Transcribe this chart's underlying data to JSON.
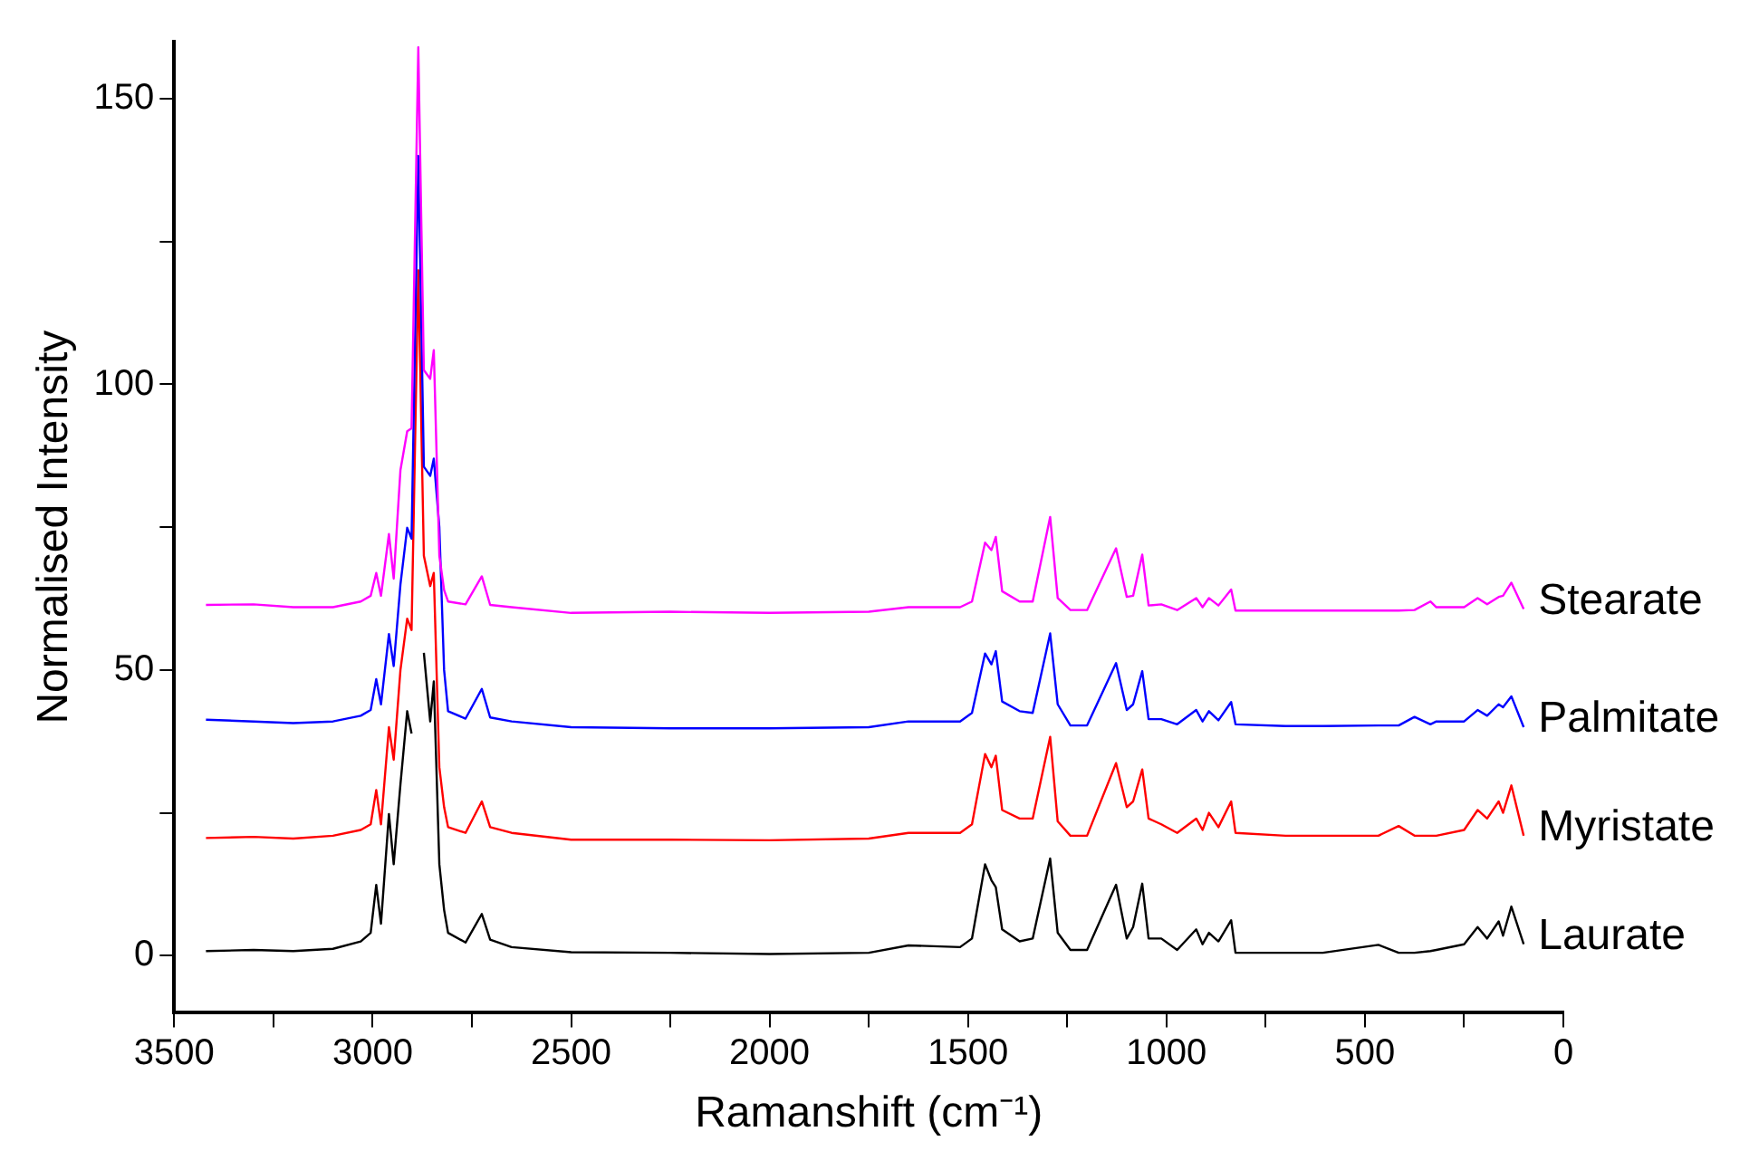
{
  "chart_data": {
    "type": "line",
    "xlabel": "Ramanshift (cm⁻¹)",
    "ylabel": "Normalised Intensity",
    "x": [
      3420,
      3300,
      3200,
      3100,
      3030,
      3005,
      2991,
      2979,
      2959,
      2947,
      2930,
      2913,
      2902,
      2885,
      2871,
      2855,
      2846,
      2832,
      2820,
      2810,
      2766,
      2725,
      2704,
      2650,
      2500,
      2250,
      2000,
      1750,
      1650,
      1520,
      1490,
      1457,
      1441,
      1430,
      1414,
      1370,
      1337,
      1293,
      1274,
      1242,
      1200,
      1127,
      1100,
      1084,
      1061,
      1045,
      1013,
      973,
      925,
      909,
      893,
      869,
      837,
      826,
      700,
      606,
      466,
      415,
      375,
      335,
      320,
      250,
      216,
      192,
      163,
      152,
      131,
      100
    ],
    "series": [
      {
        "name": "Stearate",
        "color": "#ff00ff",
        "values": [
          61.4,
          61.5,
          61,
          61,
          62,
          63,
          67,
          63,
          73.8,
          66,
          85,
          91.8,
          92.3,
          159,
          102.5,
          101,
          106,
          70,
          64,
          62,
          61.5,
          66.4,
          61.4,
          61,
          60,
          60.2,
          60,
          60.2,
          61,
          61,
          62,
          72.3,
          71,
          73.3,
          63.8,
          62,
          62,
          76.8,
          62.6,
          60.5,
          60.5,
          71.3,
          62.8,
          63,
          70.2,
          61.3,
          61.5,
          60.5,
          62.6,
          61,
          62.6,
          61.3,
          64.1,
          60.4,
          60.4,
          60.4,
          60.4,
          60.4,
          60.5,
          62,
          61,
          61,
          62.6,
          61.5,
          62.8,
          63,
          65.3,
          60.7
        ]
      },
      {
        "name": "Palmitate",
        "color": "#0000ff",
        "values": [
          41.3,
          41,
          40.7,
          41,
          42,
          43,
          48.4,
          44,
          56.3,
          50.7,
          65,
          74.9,
          73,
          140,
          85.6,
          84,
          87,
          75,
          50,
          42.8,
          41.5,
          46.7,
          41.7,
          41,
          40,
          39.8,
          39.8,
          40,
          41,
          41,
          42.5,
          52.9,
          51,
          53.3,
          44.5,
          42.8,
          42.5,
          56.4,
          44,
          40.3,
          40.3,
          51.2,
          43,
          44,
          49.8,
          41.4,
          41.4,
          40.5,
          43,
          41,
          42.8,
          41.2,
          44.4,
          40.5,
          40.2,
          40.2,
          40.3,
          40.3,
          41.8,
          40.5,
          41,
          41,
          43,
          42,
          44,
          43.5,
          45.4,
          40
        ]
      },
      {
        "name": "Myristate",
        "color": "#ff0000",
        "values": [
          20.6,
          20.8,
          20.5,
          21,
          22,
          23,
          29,
          23,
          40,
          34.3,
          50,
          59,
          57,
          120,
          70,
          64.7,
          67,
          33,
          26,
          22.5,
          21.5,
          27,
          22.5,
          21.5,
          20.3,
          20.3,
          20.2,
          20.5,
          21.5,
          21.5,
          23,
          35.3,
          33,
          35,
          25.5,
          24,
          24,
          38.3,
          23.5,
          21,
          21,
          33.7,
          26,
          27,
          32.6,
          24,
          23,
          21.5,
          24,
          22,
          25,
          22.5,
          27,
          21.5,
          21,
          21,
          21,
          22.7,
          21,
          21,
          21,
          22,
          25.5,
          24,
          27,
          25,
          29.8,
          21
        ]
      },
      {
        "name": "Laurate",
        "color": "#000000",
        "values": [
          0.8,
          1,
          0.8,
          1.2,
          2.5,
          4,
          12.4,
          5.6,
          24.8,
          16,
          30,
          42.8,
          38.9,
          null,
          53,
          41,
          48,
          16,
          8,
          4,
          2.3,
          7.3,
          2.8,
          1.5,
          0.6,
          0.5,
          0.3,
          0.5,
          1.8,
          1.5,
          3,
          16,
          13.2,
          12,
          4.6,
          2.5,
          3,
          17,
          4,
          1,
          1,
          12.4,
          3,
          5,
          12.6,
          3,
          3,
          1,
          4.6,
          2,
          4,
          2.5,
          6.2,
          0.5,
          0.5,
          0.5,
          1.9,
          0.5,
          0.5,
          0.8,
          1,
          2,
          5,
          3,
          6,
          3.5,
          8.6,
          2
        ]
      }
    ],
    "xlim": [
      3500,
      0
    ],
    "xticks": [
      0,
      {
        "value": 250,
        "label": null
      },
      500,
      {
        "value": 750,
        "label": null
      },
      1000,
      {
        "value": 1250,
        "label": null
      },
      1500,
      {
        "value": 1750,
        "label": null
      },
      2000,
      {
        "value": 2250,
        "label": null
      },
      2500,
      {
        "value": 2750,
        "label": null
      },
      3000,
      {
        "value": 3250,
        "label": null
      },
      3500
    ],
    "ylim": [
      -10,
      160
    ],
    "yticks": [
      0,
      {
        "value": 25,
        "label": null
      },
      50,
      {
        "value": 75,
        "label": null
      },
      100,
      {
        "value": 125,
        "label": null
      },
      150
    ],
    "grid": false,
    "legend": false,
    "marker": "none",
    "line_style": "solid"
  }
}
